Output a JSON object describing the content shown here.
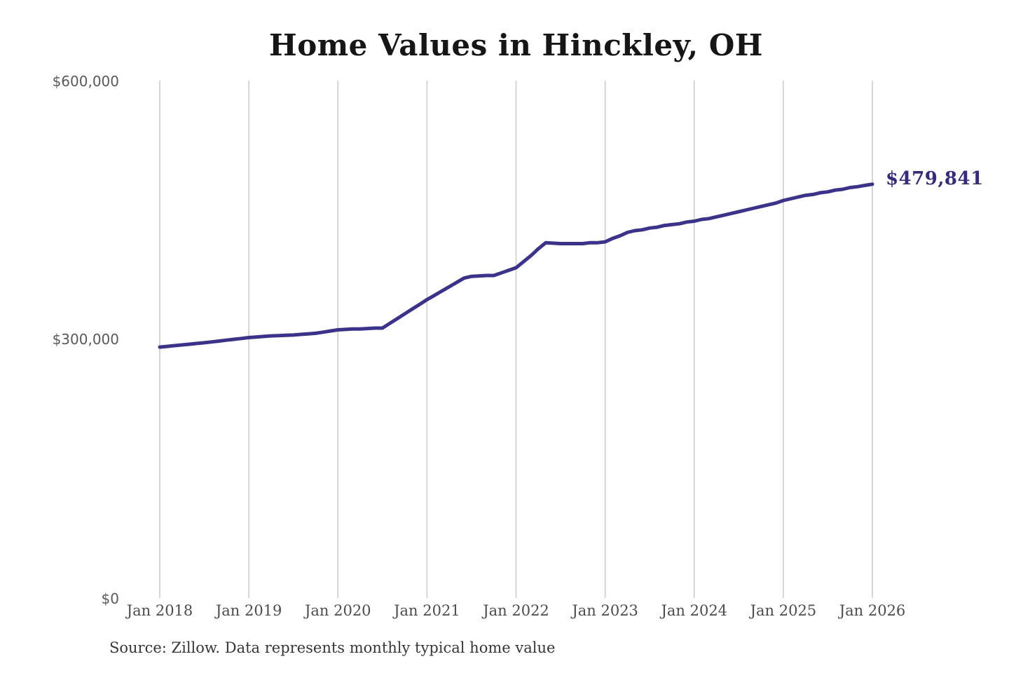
{
  "title": "Home Values in Hinckley, OH",
  "source_note": "Source: Zillow. Data represents monthly typical home value",
  "colors": {
    "line": "#3a3191",
    "annotation": "#352c82",
    "grid": "#c9c9c9",
    "title_text": "#161616",
    "y_tick_text": "#58595b",
    "x_tick_text": "#4c4c4e",
    "source_text": "#363636",
    "background": "#ffffff"
  },
  "chart_data": {
    "type": "line",
    "title": "Home Values in Hinckley, OH",
    "series_name": "Monthly typical home value",
    "x_start": "2018-01",
    "x_freq": "monthly",
    "x_tick_labels": [
      "Jan 2018",
      "Jan 2019",
      "Jan 2020",
      "Jan 2021",
      "Jan 2022",
      "Jan 2023",
      "Jan 2024",
      "Jan 2025",
      "Jan 2026"
    ],
    "y_tick_labels": [
      "$0",
      "$300,000",
      "$600,000"
    ],
    "y_tick_values": [
      0,
      300000,
      600000
    ],
    "ylim": [
      0,
      600000
    ],
    "grid": "vertical",
    "legend": "none",
    "end_annotation": "$479,841",
    "end_value": 479841,
    "values": [
      291000,
      291800,
      292700,
      293500,
      294300,
      295200,
      296000,
      297000,
      298000,
      299000,
      300000,
      301000,
      302000,
      302700,
      303300,
      304000,
      304300,
      304700,
      305000,
      305700,
      306300,
      307000,
      308300,
      309700,
      311000,
      311500,
      312000,
      312000,
      312500,
      313000,
      313000,
      318500,
      324000,
      329500,
      335000,
      340500,
      346000,
      351000,
      356000,
      361000,
      366000,
      371000,
      373000,
      373500,
      374000,
      374000,
      377000,
      380000,
      383000,
      390000,
      397000,
      405000,
      412000,
      411500,
      411000,
      411000,
      411000,
      411000,
      412000,
      412000,
      413000,
      417000,
      420000,
      424000,
      426000,
      427000,
      429000,
      430000,
      432000,
      433000,
      434000,
      436000,
      437000,
      439000,
      440000,
      442000,
      444000,
      446000,
      448000,
      450000,
      452000,
      454000,
      456000,
      458000,
      461000,
      463000,
      465000,
      467000,
      468000,
      470000,
      471000,
      473000,
      474000,
      476000,
      477000,
      478500,
      479841
    ]
  }
}
